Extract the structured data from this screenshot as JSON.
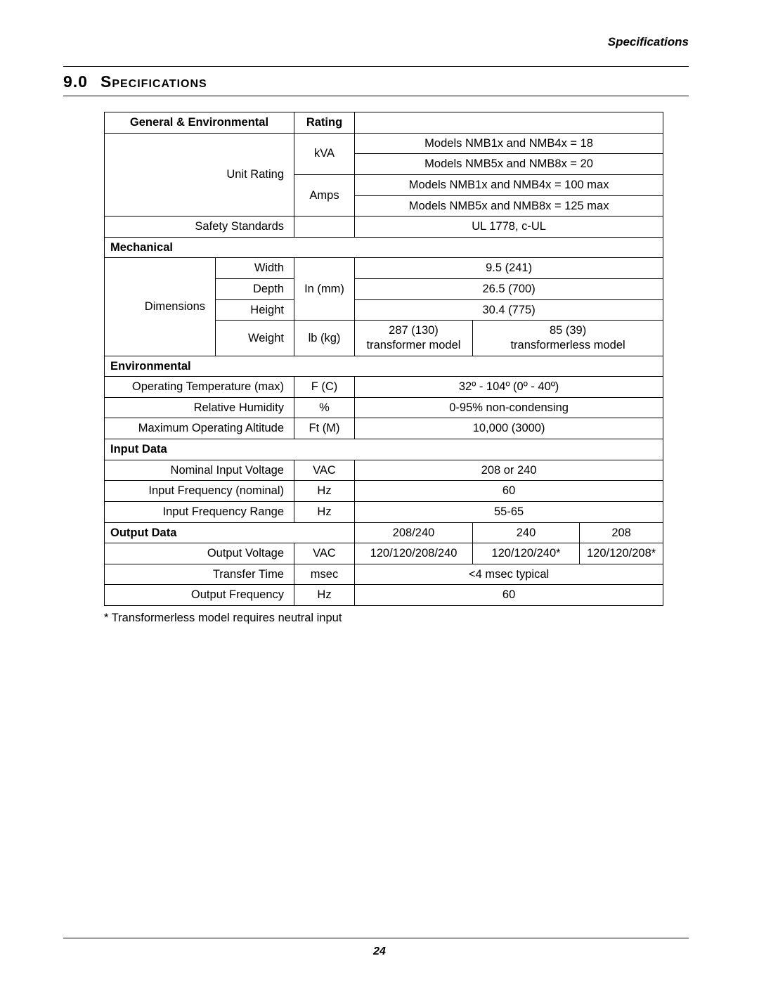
{
  "running_head": "Specifications",
  "section": {
    "number": "9.0",
    "title": "Specifications"
  },
  "footnote": "*  Transformerless model requires neutral input",
  "page_number": "24",
  "col_widths": {
    "c1": 158,
    "c2": 112,
    "c3": 86,
    "c4": 168,
    "c5": 152,
    "c6": 116
  },
  "table": {
    "rows": [
      {
        "kind": "header",
        "c12_bold": "General & Environmental",
        "c3_bold": "Rating",
        "rest_blank": true
      },
      {
        "kind": "unit_rating_top",
        "c12_rowspan4": "Unit Rating",
        "c3_rowspan2": "kVA",
        "c456": "Models NMB1x and NMB4x = 18"
      },
      {
        "kind": "data456",
        "c456": "Models NMB5x and NMB8x = 20"
      },
      {
        "kind": "unit_rating_amps",
        "c3_rowspan2": "Amps",
        "c456": "Models NMB1x and NMB4x = 100 max"
      },
      {
        "kind": "data456",
        "c456": "Models NMB5x and NMB8x = 125 max"
      },
      {
        "kind": "label3",
        "c12": "Safety Standards",
        "c3": "",
        "c456": "UL 1778, c-UL"
      },
      {
        "kind": "section",
        "label": "Mechanical"
      },
      {
        "kind": "dim_top",
        "c1_rowspan4": "Dimensions",
        "c2": "Width",
        "c3_rowspan3": "In (mm)",
        "c456": "9.5 (241)"
      },
      {
        "kind": "dim",
        "c2": "Depth",
        "c456": "26.5 (700)"
      },
      {
        "kind": "dim",
        "c2": "Height",
        "c456": "30.4 (775)"
      },
      {
        "kind": "weight",
        "c2": "Weight",
        "c3": "lb (kg)",
        "c4a": "287 (130)",
        "c4b": "transformer model",
        "c56a": "85 (39)",
        "c56b": "transformerless model"
      },
      {
        "kind": "section",
        "label": "Environmental"
      },
      {
        "kind": "label3",
        "c12": "Operating Temperature (max)",
        "c3": "F (C)",
        "c456": "32º - 104º (0º - 40º)"
      },
      {
        "kind": "label3",
        "c12": "Relative Humidity",
        "c3": "%",
        "c456": "0-95% non-condensing"
      },
      {
        "kind": "label3",
        "c12": "Maximum Operating Altitude",
        "c3": "Ft (M)",
        "c456": "10,000 (3000)"
      },
      {
        "kind": "section",
        "label": "Input Data"
      },
      {
        "kind": "label3",
        "c12": "Nominal Input Voltage",
        "c3": "VAC",
        "c456": "208 or 240"
      },
      {
        "kind": "label3",
        "c12": "Input Frequency (nominal)",
        "c3": "Hz",
        "c456": "60"
      },
      {
        "kind": "label3",
        "c12": "Input Frequency Range",
        "c3": "Hz",
        "c456": "55-65"
      },
      {
        "kind": "output_header",
        "c123_bold": "Output Data",
        "c4": "208/240",
        "c5": "240",
        "c6": "208"
      },
      {
        "kind": "out3",
        "c12": "Output Voltage",
        "c3": "VAC",
        "c4": "120/120/208/240",
        "c5": "120/120/240*",
        "c6": "120/120/208*"
      },
      {
        "kind": "label3",
        "c12": "Transfer Time",
        "c3": "msec",
        "c456": "<4 msec typical"
      },
      {
        "kind": "label3",
        "c12": "Output Frequency",
        "c3": "Hz",
        "c456": "60"
      }
    ]
  }
}
